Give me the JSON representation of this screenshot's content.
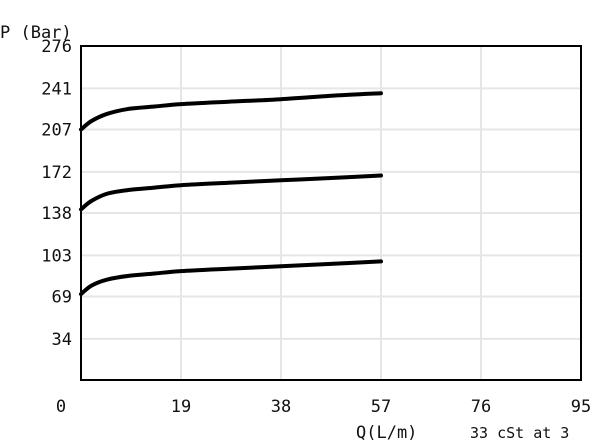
{
  "chart_data": {
    "type": "line",
    "title": "",
    "ylabel": "P (Bar)",
    "xlabel": "Q(L/m)",
    "note": "33 cSt at 3",
    "x_ticks": [
      "0",
      "19",
      "38",
      "57",
      "76",
      "95"
    ],
    "y_ticks": [
      "34",
      "69",
      "103",
      "138",
      "172",
      "207",
      "241",
      "276"
    ],
    "xlim": [
      0,
      95
    ],
    "ylim": [
      0,
      276
    ],
    "grid": true,
    "legend": "none",
    "colors": {
      "line": "#000000",
      "grid": "#e6e6e6",
      "frame": "#000000"
    },
    "series": [
      {
        "x": [
          0,
          2,
          5,
          9,
          14,
          19,
          28,
          38,
          48,
          57
        ],
        "y": [
          207,
          214,
          220,
          224,
          226,
          228,
          230,
          232,
          235,
          237
        ]
      },
      {
        "x": [
          0,
          2,
          5,
          9,
          14,
          19,
          28,
          38,
          48,
          57
        ],
        "y": [
          141,
          148,
          154,
          157,
          159,
          161,
          163,
          165,
          167,
          169
        ]
      },
      {
        "x": [
          0,
          2,
          5,
          9,
          14,
          19,
          28,
          38,
          48,
          57
        ],
        "y": [
          71,
          78,
          83,
          86,
          88,
          90,
          92,
          94,
          96,
          98
        ]
      }
    ]
  }
}
